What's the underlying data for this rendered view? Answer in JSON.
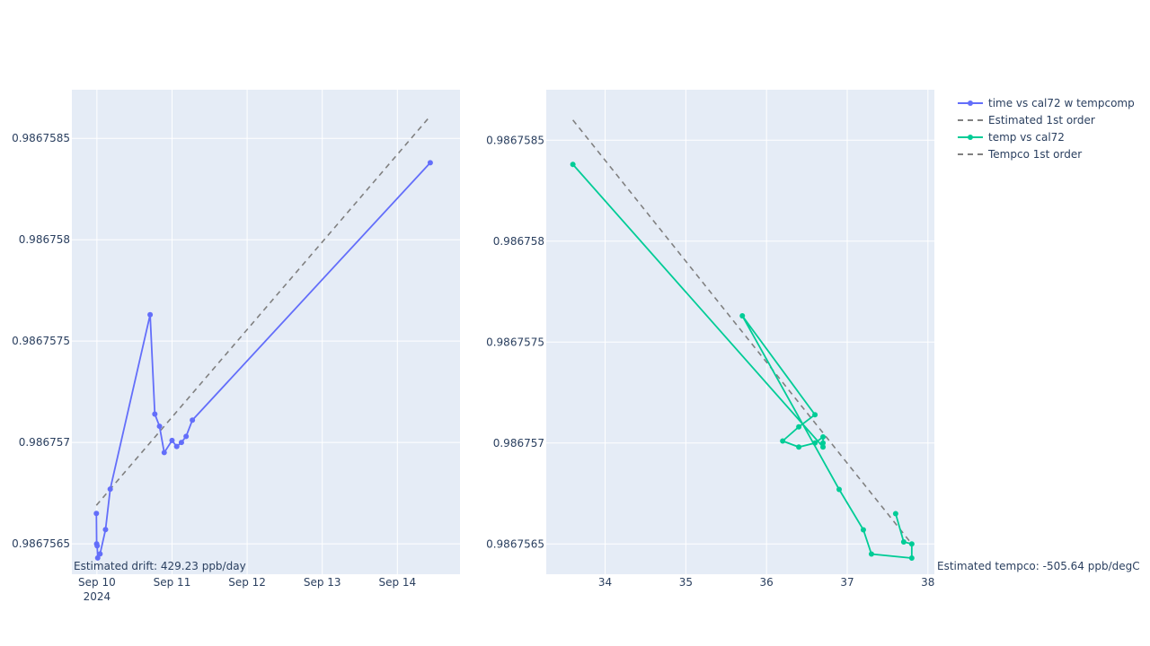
{
  "chart_data": [
    {
      "type": "line",
      "xaxis": {
        "type": "date",
        "range": [
          "2024-09-09T16:00",
          "2024-09-14T20:00"
        ],
        "tick_labels": [
          {
            "value": "2024-09-10",
            "label": "Sep 10",
            "sublabel": "2024"
          },
          {
            "value": "2024-09-11",
            "label": "Sep 11"
          },
          {
            "value": "2024-09-12",
            "label": "Sep 12"
          },
          {
            "value": "2024-09-13",
            "label": "Sep 13"
          },
          {
            "value": "2024-09-14",
            "label": "Sep 14"
          }
        ]
      },
      "yaxis": {
        "range": [
          0.98675635,
          0.98675874
        ],
        "tick_values": [
          0.9867565,
          0.986757,
          0.9867575,
          0.986758,
          0.9867585
        ],
        "tick_labels": [
          "0.9867565",
          "0.986757",
          "0.9867575",
          "0.986758",
          "0.9867585"
        ]
      },
      "grid": true,
      "series": [
        {
          "name": "time vs cal72 w tempcomp",
          "mode": "lines+markers",
          "color": "#636efa",
          "x": [
            "2024-09-09T23:50",
            "2024-09-09T23:55",
            "2024-09-10T00:05",
            "2024-09-10T00:15",
            "2024-09-10T01:00",
            "2024-09-10T02:45",
            "2024-09-10T04:15",
            "2024-09-10T17:00",
            "2024-09-10T18:30",
            "2024-09-10T20:00",
            "2024-09-10T21:30",
            "2024-09-11T00:00",
            "2024-09-11T01:30",
            "2024-09-11T03:00",
            "2024-09-11T04:30",
            "2024-09-11T06:30",
            "2024-09-14T10:30"
          ],
          "y": [
            0.98675665,
            0.9867565,
            0.98675649,
            0.98675643,
            0.98675645,
            0.98675657,
            0.98675677,
            0.98675763,
            0.98675714,
            0.98675708,
            0.98675695,
            0.98675701,
            0.98675698,
            0.986757,
            0.98675703,
            0.98675711,
            0.98675838
          ]
        },
        {
          "name": "Estimated 1st order",
          "mode": "lines",
          "dash": "dash",
          "color": "#808080",
          "x": [
            "2024-09-09T23:50",
            "2024-09-14T10:30"
          ],
          "y": [
            0.98675669,
            0.98675861
          ]
        }
      ],
      "annotations": [
        {
          "text": "Estimated drift:  429.23 ppb/day"
        }
      ]
    },
    {
      "type": "line",
      "xaxis": {
        "range": [
          33.27,
          38.08
        ],
        "tick_values": [
          34,
          35,
          36,
          37,
          38
        ],
        "tick_labels": [
          "34",
          "35",
          "36",
          "37",
          "38"
        ]
      },
      "yaxis": {
        "range": [
          0.98675635,
          0.98675875
        ],
        "tick_values": [
          0.9867565,
          0.986757,
          0.9867575,
          0.986758,
          0.9867585
        ],
        "tick_labels": [
          "0.9867565",
          "0.986757",
          "0.9867575",
          "0.986758",
          "0.9867585"
        ]
      },
      "grid": true,
      "series": [
        {
          "name": "temp vs cal72",
          "mode": "lines+markers",
          "color": "#00cc96",
          "x": [
            37.6,
            37.7,
            37.8,
            37.8,
            37.3,
            37.2,
            36.9,
            35.7,
            36.6,
            36.4,
            36.2,
            36.4,
            36.6,
            36.7,
            36.7,
            36.7,
            33.6
          ],
          "y": [
            0.98675665,
            0.98675651,
            0.9867565,
            0.98675643,
            0.98675645,
            0.98675657,
            0.98675677,
            0.98675763,
            0.98675714,
            0.98675708,
            0.98675701,
            0.98675698,
            0.986757,
            0.98675703,
            0.986757,
            0.98675698,
            0.98675838
          ]
        },
        {
          "name": "Tempco 1st order",
          "mode": "lines",
          "dash": "dash",
          "color": "#808080",
          "x": [
            33.6,
            37.8
          ],
          "y": [
            0.9867586,
            0.9867565
          ]
        }
      ],
      "annotations": [
        {
          "text": "Estimated tempco:  -505.64 ppb/degC"
        }
      ]
    }
  ],
  "legend": {
    "placement": "top-right",
    "items": [
      {
        "name": "time vs cal72 w tempcomp",
        "color": "#636efa",
        "style": "line-marker"
      },
      {
        "name": "Estimated 1st order",
        "color": "#808080",
        "style": "dash"
      },
      {
        "name": "temp vs cal72",
        "color": "#00cc96",
        "style": "line-marker"
      },
      {
        "name": "Tempco 1st order",
        "color": "#808080",
        "style": "dash"
      }
    ]
  },
  "colors": {
    "plot_background": "#e5ecf6",
    "grid": "#ffffff",
    "text": "#2a3f5f"
  }
}
